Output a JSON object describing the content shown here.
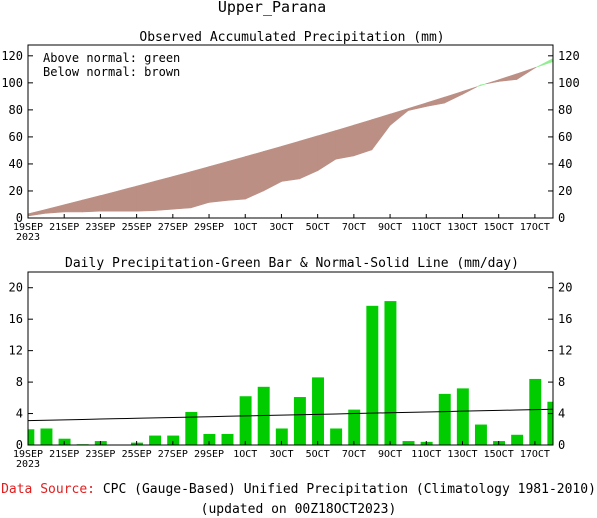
{
  "page_title": "Upper_Parana",
  "footer": {
    "source_label": "Data Source:",
    "source_text": "CPC (Gauge-Based) Unified Precipitation (Climatology 1981-2010)",
    "updated": "(updated on 00Z18OCT2023)"
  },
  "colors": {
    "above": "#90ee90",
    "below": "#bc8f84",
    "bar": "#00cc00",
    "source_label": "#e02020"
  },
  "chart_data": [
    {
      "type": "area",
      "title": "Observed Accumulated Precipitation (mm)",
      "annotations": [
        "Above normal: green",
        "Below normal: brown"
      ],
      "ylim": [
        0,
        128
      ],
      "yticks": [
        0,
        20,
        40,
        60,
        80,
        100,
        120
      ],
      "x_tick_labels": [
        "19SEP",
        "21SEP",
        "23SEP",
        "25SEP",
        "27SEP",
        "29SEP",
        "1OCT",
        "3OCT",
        "5OCT",
        "7OCT",
        "9OCT",
        "11OCT",
        "13OCT",
        "15OCT",
        "17OCT"
      ],
      "x_year": "2023",
      "x": [
        "19SEP",
        "20SEP",
        "21SEP",
        "22SEP",
        "23SEP",
        "24SEP",
        "25SEP",
        "26SEP",
        "27SEP",
        "28SEP",
        "29SEP",
        "30SEP",
        "1OCT",
        "2OCT",
        "3OCT",
        "4OCT",
        "5OCT",
        "6OCT",
        "7OCT",
        "8OCT",
        "9OCT",
        "10OCT",
        "11OCT",
        "12OCT",
        "13OCT",
        "14OCT",
        "15OCT",
        "16OCT",
        "17OCT",
        "18OCT"
      ],
      "series": [
        {
          "name": "observed",
          "values": [
            1.5,
            3.5,
            4.5,
            4.5,
            5.0,
            5.0,
            5.0,
            5.5,
            6.5,
            7.5,
            11.5,
            13.0,
            14.0,
            20.0,
            27.0,
            29.0,
            35.0,
            43.5,
            46.0,
            50.5,
            68.5,
            79.5,
            82.5,
            85.0,
            91.5,
            98.5,
            101.0,
            102.5,
            111.0,
            118.0
          ]
        },
        {
          "name": "normal",
          "values": [
            3.1,
            6.4,
            9.8,
            13.2,
            16.6,
            20.1,
            23.6,
            27.2,
            30.7,
            34.3,
            38.0,
            41.7,
            45.4,
            49.2,
            53.0,
            56.9,
            60.8,
            64.7,
            68.7,
            72.8,
            76.9,
            81.0,
            85.2,
            89.4,
            93.7,
            98.0,
            102.3,
            106.7,
            111.2,
            115.7
          ]
        }
      ]
    },
    {
      "type": "bar",
      "title": "Daily Precipitation-Green Bar & Normal-Solid Line (mm/day)",
      "ylim": [
        0,
        22
      ],
      "yticks": [
        0,
        4,
        8,
        12,
        16,
        20
      ],
      "x_tick_labels": [
        "19SEP",
        "21SEP",
        "23SEP",
        "25SEP",
        "27SEP",
        "29SEP",
        "1OCT",
        "3OCT",
        "5OCT",
        "7OCT",
        "9OCT",
        "11OCT",
        "13OCT",
        "15OCT",
        "17OCT"
      ],
      "x_year": "2023",
      "x": [
        "19SEP",
        "20SEP",
        "21SEP",
        "22SEP",
        "23SEP",
        "24SEP",
        "25SEP",
        "26SEP",
        "27SEP",
        "28SEP",
        "29SEP",
        "30SEP",
        "1OCT",
        "2OCT",
        "3OCT",
        "4OCT",
        "5OCT",
        "6OCT",
        "7OCT",
        "8OCT",
        "9OCT",
        "10OCT",
        "11OCT",
        "12OCT",
        "13OCT",
        "14OCT",
        "15OCT",
        "16OCT",
        "17OCT",
        "18OCT"
      ],
      "series": [
        {
          "name": "daily",
          "values": [
            2.0,
            2.1,
            0.8,
            0.1,
            0.5,
            0.0,
            0.3,
            1.2,
            1.2,
            4.2,
            1.4,
            1.4,
            6.2,
            7.4,
            2.1,
            6.1,
            8.6,
            2.1,
            4.5,
            17.7,
            18.3,
            0.5,
            0.4,
            6.5,
            7.2,
            2.6,
            0.5,
            1.3,
            8.4,
            5.5
          ]
        },
        {
          "name": "normal",
          "values": [
            3.1,
            3.15,
            3.2,
            3.25,
            3.3,
            3.35,
            3.4,
            3.45,
            3.5,
            3.55,
            3.6,
            3.65,
            3.7,
            3.75,
            3.8,
            3.85,
            3.9,
            3.95,
            4.0,
            4.05,
            4.1,
            4.15,
            4.2,
            4.25,
            4.3,
            4.35,
            4.4,
            4.45,
            4.5,
            4.55
          ]
        }
      ]
    }
  ]
}
